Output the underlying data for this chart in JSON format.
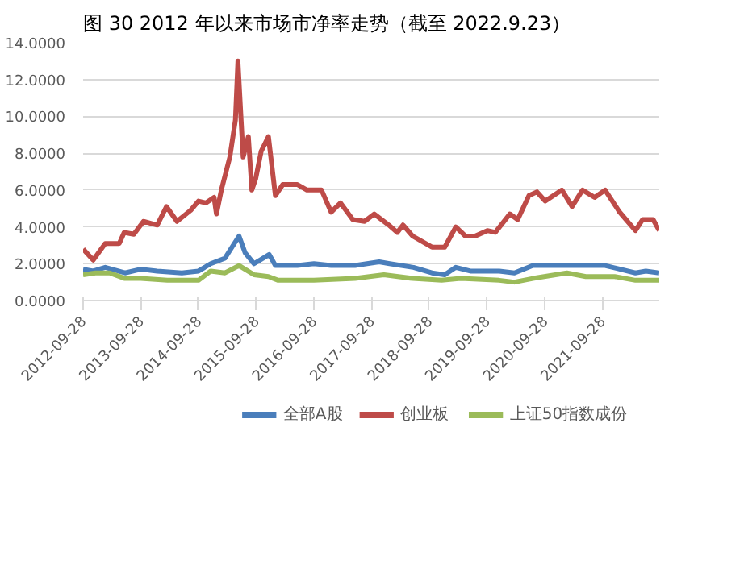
{
  "chart_data": {
    "type": "line",
    "title": "图 30 2012 年以来市场市净率走势（截至 2022.9.23）",
    "xlim": [
      "2012-09-28",
      "2022-09-23"
    ],
    "xticks": [
      "2012-09-28",
      "2013-09-28",
      "2014-09-28",
      "2015-09-28",
      "2016-09-28",
      "2017-09-28",
      "2018-09-28",
      "2019-09-28",
      "2020-09-28",
      "2021-09-28"
    ],
    "ylim": [
      0,
      14
    ],
    "yticks": [
      {
        "value": 0,
        "label": "0.0000"
      },
      {
        "value": 2,
        "label": "2.0000"
      },
      {
        "value": 4,
        "label": "4.0000"
      },
      {
        "value": 6,
        "label": "6.0000"
      },
      {
        "value": 8,
        "label": "8.0000"
      },
      {
        "value": 10,
        "label": "10.0000"
      },
      {
        "value": 12,
        "label": "12.0000"
      },
      {
        "value": 14,
        "label": "14.0000"
      }
    ],
    "grid": "y",
    "legend": "bottom",
    "line_style": "solid",
    "marker": "none",
    "series": [
      {
        "name": "全部A股",
        "color": "#4a7ebb",
        "x": [
          "2012-09-28",
          "2012-12-01",
          "2013-02-15",
          "2013-06-20",
          "2013-09-28",
          "2014-01-10",
          "2014-06-15",
          "2014-09-28",
          "2014-12-15",
          "2015-03-15",
          "2015-06-12",
          "2015-07-20",
          "2015-09-15",
          "2015-12-20",
          "2016-01-28",
          "2016-06-15",
          "2016-09-28",
          "2017-01-15",
          "2017-06-15",
          "2017-11-15",
          "2018-01-20",
          "2018-06-20",
          "2018-10-15",
          "2019-01-04",
          "2019-03-15",
          "2019-06-15",
          "2019-12-15",
          "2020-03-20",
          "2020-07-15",
          "2021-01-15",
          "2021-06-15",
          "2021-10-15",
          "2022-04-25",
          "2022-06-30",
          "2022-09-23"
        ],
        "values": [
          1.7,
          1.6,
          1.8,
          1.5,
          1.7,
          1.6,
          1.5,
          1.6,
          2.0,
          2.3,
          3.5,
          2.6,
          2.0,
          2.5,
          1.9,
          1.9,
          2.0,
          1.9,
          1.9,
          2.1,
          2.0,
          1.8,
          1.5,
          1.4,
          1.8,
          1.6,
          1.6,
          1.5,
          1.9,
          1.9,
          1.9,
          1.9,
          1.5,
          1.6,
          1.5
        ]
      },
      {
        "name": "创业板",
        "color": "#be4b48",
        "x": [
          "2012-09-28",
          "2012-12-01",
          "2013-02-15",
          "2013-05-15",
          "2013-06-15",
          "2013-08-15",
          "2013-10-15",
          "2014-01-10",
          "2014-03-10",
          "2014-05-15",
          "2014-08-10",
          "2014-09-28",
          "2014-11-15",
          "2015-01-05",
          "2015-01-20",
          "2015-02-20",
          "2015-04-15",
          "2015-05-20",
          "2015-06-05",
          "2015-06-25",
          "2015-07-08",
          "2015-08-10",
          "2015-09-01",
          "2015-09-25",
          "2015-10-30",
          "2015-12-15",
          "2016-01-28",
          "2016-03-15",
          "2016-06-15",
          "2016-08-15",
          "2016-11-15",
          "2017-01-15",
          "2017-03-15",
          "2017-06-01",
          "2017-08-15",
          "2017-10-15",
          "2018-01-15",
          "2018-03-10",
          "2018-04-15",
          "2018-06-15",
          "2018-10-15",
          "2019-01-04",
          "2019-03-15",
          "2019-05-15",
          "2019-07-15",
          "2019-10-01",
          "2019-11-20",
          "2020-02-20",
          "2020-04-10",
          "2020-06-20",
          "2020-08-10",
          "2020-10-01",
          "2021-01-15",
          "2021-03-20",
          "2021-05-25",
          "2021-08-10",
          "2021-10-15",
          "2022-01-15",
          "2022-04-25",
          "2022-06-10",
          "2022-08-15",
          "2022-09-23"
        ],
        "values": [
          2.8,
          2.2,
          3.1,
          3.1,
          3.7,
          3.6,
          4.3,
          4.1,
          5.1,
          4.3,
          4.9,
          5.4,
          5.3,
          5.6,
          4.7,
          6.0,
          7.8,
          9.8,
          13.0,
          9.8,
          7.8,
          8.9,
          6.0,
          6.6,
          8.1,
          8.9,
          5.7,
          6.3,
          6.3,
          6.0,
          6.0,
          4.8,
          5.3,
          4.4,
          4.3,
          4.7,
          4.1,
          3.7,
          4.1,
          3.5,
          2.9,
          2.9,
          4.0,
          3.5,
          3.5,
          3.8,
          3.7,
          4.7,
          4.4,
          5.7,
          5.9,
          5.4,
          6.0,
          5.1,
          6.0,
          5.6,
          6.0,
          4.8,
          3.8,
          4.4,
          4.4,
          3.8
        ]
      },
      {
        "name": "上证50指数成份",
        "color": "#9bbb59",
        "x": [
          "2012-09-28",
          "2012-12-15",
          "2013-03-15",
          "2013-06-20",
          "2013-09-28",
          "2014-03-15",
          "2014-09-28",
          "2014-12-15",
          "2015-03-15",
          "2015-06-12",
          "2015-09-15",
          "2015-12-15",
          "2016-02-15",
          "2016-09-28",
          "2017-06-15",
          "2017-12-15",
          "2018-06-15",
          "2018-12-15",
          "2019-04-15",
          "2019-12-15",
          "2020-03-20",
          "2020-07-15",
          "2021-02-15",
          "2021-06-15",
          "2021-12-15",
          "2022-04-25",
          "2022-09-23"
        ],
        "values": [
          1.4,
          1.5,
          1.5,
          1.2,
          1.2,
          1.1,
          1.1,
          1.6,
          1.5,
          1.9,
          1.4,
          1.3,
          1.1,
          1.1,
          1.2,
          1.4,
          1.2,
          1.1,
          1.2,
          1.1,
          1.0,
          1.2,
          1.5,
          1.3,
          1.3,
          1.1,
          1.1
        ]
      }
    ]
  }
}
